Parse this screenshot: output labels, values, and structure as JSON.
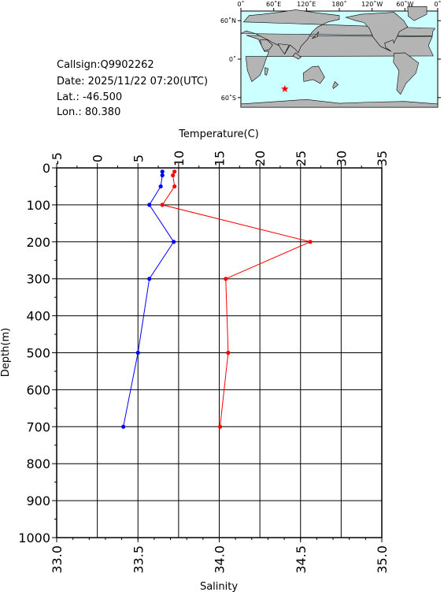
{
  "info": {
    "callsign": "Callsign:Q9902262",
    "date": "Date:  2025/11/22 07:20(UTC)",
    "lat": "Lat.:  -46.500",
    "lon": "Lon.:   80.380"
  },
  "map": {
    "lon_labels": [
      "0˚",
      "60˚E",
      "120˚E",
      "180˚",
      "120˚W",
      "60˚W",
      "0˚"
    ],
    "lat_labels": [
      "60˚N",
      "0˚",
      "60˚S"
    ],
    "marker": {
      "lat": -46.5,
      "lon": 80.38
    },
    "colors": {
      "ocean": "#ccffff",
      "land": "#b4b4b4",
      "marker": "#ff0000"
    }
  },
  "chart_data": {
    "type": "line",
    "ylabel": "Depth(m)",
    "y_ticks": [
      "0",
      "100",
      "200",
      "300",
      "400",
      "500",
      "600",
      "700",
      "800",
      "900",
      "1000"
    ],
    "ylim": [
      0,
      1000
    ],
    "temperature_axis": {
      "label": "Temperature(C)",
      "ticks": [
        "-5",
        "0",
        "5",
        "10",
        "15",
        "20",
        "25",
        "30",
        "35"
      ],
      "lim": [
        -5,
        35
      ]
    },
    "salinity_axis": {
      "label": "Salinity",
      "ticks": [
        "33.0",
        "33.5",
        "34.0",
        "34.5",
        "35.0"
      ],
      "lim": [
        33.0,
        35.0
      ]
    },
    "series": [
      {
        "axis": "temperature",
        "color": "#ff0000",
        "depth": [
          10,
          20,
          50,
          100,
          200,
          300,
          500,
          700
        ],
        "values": [
          9.5,
          9.3,
          9.5,
          8.0,
          26.2,
          15.8,
          16.1,
          15.1
        ]
      },
      {
        "axis": "salinity",
        "color": "#0000ff",
        "depth": [
          10,
          20,
          50,
          100,
          200,
          300,
          500,
          700
        ],
        "values": [
          33.65,
          33.65,
          33.64,
          33.57,
          33.72,
          33.57,
          33.5,
          33.41
        ]
      }
    ],
    "grid": true
  }
}
